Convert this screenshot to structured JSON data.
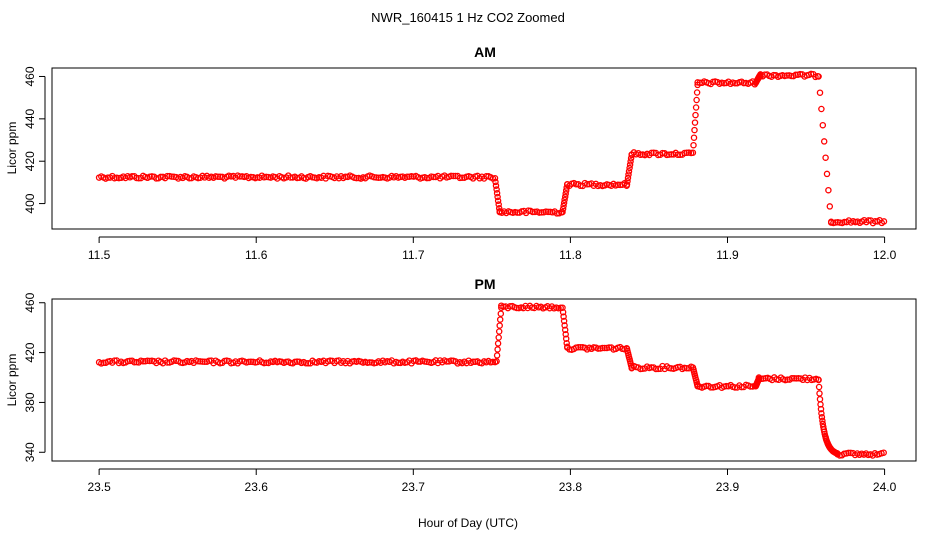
{
  "chart_data": {
    "title": "NWR_160415  1 Hz CO2 Zoomed",
    "xlabel": "Hour of Day (UTC)",
    "panels": [
      {
        "type": "scatter",
        "title": "AM",
        "ylabel": "Licor ppm",
        "xlim": [
          11.47,
          12.02
        ],
        "ylim": [
          388,
          464
        ],
        "xticks": [
          "11.5",
          "11.6",
          "11.7",
          "11.8",
          "11.9",
          "12.0"
        ],
        "yticks": [
          "400",
          "420",
          "440",
          "460"
        ],
        "series": [
          {
            "name": "CO2",
            "color": "#ff0000",
            "segments": [
              {
                "x0": 11.5,
                "x1": 11.752,
                "y": 412.5
              },
              {
                "x0": 11.752,
                "x1": 11.755,
                "y0": 412,
                "y1": 396
              },
              {
                "x0": 11.755,
                "x1": 11.795,
                "y": 396.0
              },
              {
                "x0": 11.795,
                "x1": 11.798,
                "y0": 396,
                "y1": 409
              },
              {
                "x0": 11.798,
                "x1": 11.836,
                "y": 409.0
              },
              {
                "x0": 11.836,
                "x1": 11.839,
                "y0": 409,
                "y1": 423
              },
              {
                "x0": 11.839,
                "x1": 11.878,
                "y": 423.5
              },
              {
                "x0": 11.878,
                "x1": 11.881,
                "y0": 424,
                "y1": 456
              },
              {
                "x0": 11.881,
                "x1": 11.918,
                "y": 457.0
              },
              {
                "x0": 11.918,
                "x1": 11.921,
                "y0": 457,
                "y1": 461
              },
              {
                "x0": 11.921,
                "x1": 11.958,
                "y": 460.5
              },
              {
                "x0": 11.958,
                "x1": 11.966,
                "y0": 460,
                "y1": 391
              },
              {
                "x0": 11.966,
                "x1": 12.0,
                "y": 391.5
              }
            ]
          }
        ]
      },
      {
        "type": "scatter",
        "title": "PM",
        "ylabel": "Licor ppm",
        "xlim": [
          23.47,
          24.02
        ],
        "ylim": [
          333,
          463
        ],
        "xticks": [
          "23.5",
          "23.6",
          "23.7",
          "23.8",
          "23.9",
          "24.0"
        ],
        "yticks": [
          "340",
          "380",
          "420",
          "460"
        ],
        "series": [
          {
            "name": "CO2",
            "color": "#ff0000",
            "segments": [
              {
                "x0": 23.5,
                "x1": 23.753,
                "y": 412.5
              },
              {
                "x0": 23.753,
                "x1": 23.756,
                "y0": 413,
                "y1": 456
              },
              {
                "x0": 23.756,
                "x1": 23.795,
                "y": 456.5
              },
              {
                "x0": 23.795,
                "x1": 23.798,
                "y0": 456,
                "y1": 424
              },
              {
                "x0": 23.798,
                "x1": 23.836,
                "y": 423.5
              },
              {
                "x0": 23.836,
                "x1": 23.839,
                "y0": 423,
                "y1": 408
              },
              {
                "x0": 23.839,
                "x1": 23.878,
                "y": 408.0
              },
              {
                "x0": 23.878,
                "x1": 23.881,
                "y0": 408,
                "y1": 393
              },
              {
                "x0": 23.881,
                "x1": 23.918,
                "y": 393.0
              },
              {
                "x0": 23.918,
                "x1": 23.92,
                "y0": 393,
                "y1": 399
              },
              {
                "x0": 23.92,
                "x1": 23.958,
                "y": 399.0
              },
              {
                "x0": 23.958,
                "x1": 23.97,
                "y0": 398,
                "y1": 339,
                "curve": "decay"
              },
              {
                "x0": 23.97,
                "x1": 24.0,
                "y": 338.5
              }
            ]
          }
        ]
      }
    ]
  }
}
